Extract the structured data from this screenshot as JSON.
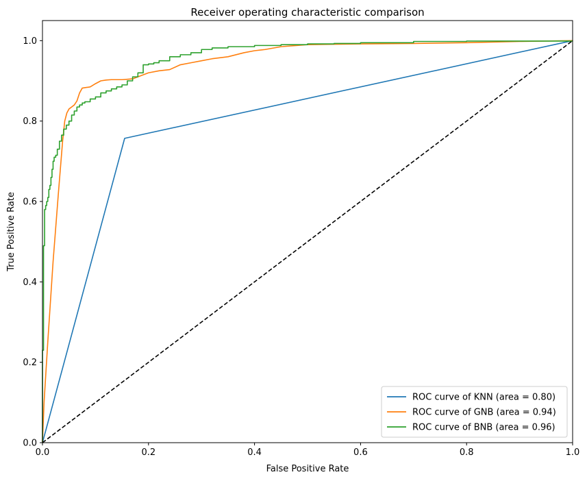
{
  "chart_data": {
    "type": "line",
    "title": "Receiver operating characteristic comparison",
    "xlabel": "False Positive Rate",
    "ylabel": "True Positive Rate",
    "xlim": [
      0.0,
      1.0
    ],
    "ylim": [
      0.0,
      1.05
    ],
    "xticks": [
      "0.0",
      "0.2",
      "0.4",
      "0.6",
      "0.8",
      "1.0"
    ],
    "yticks": [
      "0.0",
      "0.2",
      "0.4",
      "0.6",
      "0.8",
      "1.0"
    ],
    "grid": false,
    "legend_position": "lower-right",
    "series": [
      {
        "name": "ROC curve of KNN (area = 0.80)",
        "color": "#1f77b4",
        "step": false,
        "x": [
          0.0,
          0.155,
          1.0
        ],
        "y": [
          0.0,
          0.757,
          1.0
        ]
      },
      {
        "name": "ROC curve of GNB (area = 0.94)",
        "color": "#ff7f0e",
        "step": false,
        "x": [
          0.0,
          0.003,
          0.01,
          0.02,
          0.03,
          0.038,
          0.042,
          0.046,
          0.05,
          0.055,
          0.06,
          0.065,
          0.07,
          0.075,
          0.08,
          0.09,
          0.1,
          0.11,
          0.12,
          0.13,
          0.15,
          0.16,
          0.17,
          0.18,
          0.2,
          0.22,
          0.24,
          0.26,
          0.28,
          0.3,
          0.32,
          0.35,
          0.38,
          0.4,
          0.42,
          0.45,
          0.5,
          0.55,
          0.6,
          0.7,
          0.8,
          0.9,
          1.0
        ],
        "y": [
          0.0,
          0.1,
          0.25,
          0.45,
          0.62,
          0.75,
          0.8,
          0.82,
          0.83,
          0.835,
          0.84,
          0.85,
          0.87,
          0.882,
          0.883,
          0.885,
          0.893,
          0.9,
          0.902,
          0.903,
          0.903,
          0.904,
          0.905,
          0.91,
          0.92,
          0.925,
          0.928,
          0.94,
          0.945,
          0.95,
          0.955,
          0.96,
          0.97,
          0.975,
          0.978,
          0.985,
          0.99,
          0.991,
          0.992,
          0.993,
          0.995,
          0.998,
          1.0
        ]
      },
      {
        "name": "ROC curve of BNB (area = 0.96)",
        "color": "#2ca02c",
        "step": true,
        "x": [
          0.0,
          0.0,
          0.002,
          0.004,
          0.006,
          0.008,
          0.01,
          0.012,
          0.014,
          0.016,
          0.018,
          0.02,
          0.022,
          0.025,
          0.028,
          0.032,
          0.036,
          0.04,
          0.045,
          0.05,
          0.055,
          0.06,
          0.065,
          0.07,
          0.075,
          0.08,
          0.09,
          0.1,
          0.11,
          0.12,
          0.13,
          0.14,
          0.15,
          0.16,
          0.17,
          0.18,
          0.19,
          0.2,
          0.21,
          0.22,
          0.24,
          0.26,
          0.28,
          0.3,
          0.32,
          0.35,
          0.4,
          0.45,
          0.5,
          0.55,
          0.6,
          0.7,
          0.8,
          1.0
        ],
        "y": [
          0.0,
          0.23,
          0.49,
          0.58,
          0.59,
          0.6,
          0.61,
          0.63,
          0.64,
          0.66,
          0.68,
          0.7,
          0.71,
          0.715,
          0.73,
          0.75,
          0.765,
          0.78,
          0.79,
          0.8,
          0.815,
          0.825,
          0.835,
          0.84,
          0.845,
          0.848,
          0.855,
          0.86,
          0.87,
          0.875,
          0.88,
          0.885,
          0.89,
          0.9,
          0.91,
          0.92,
          0.94,
          0.942,
          0.945,
          0.95,
          0.96,
          0.965,
          0.97,
          0.978,
          0.982,
          0.985,
          0.988,
          0.99,
          0.992,
          0.993,
          0.995,
          0.998,
          0.999,
          1.0
        ]
      },
      {
        "name": "",
        "color": "#000000",
        "dashed": true,
        "step": false,
        "x": [
          0.0,
          1.0
        ],
        "y": [
          0.0,
          1.0
        ]
      }
    ]
  }
}
